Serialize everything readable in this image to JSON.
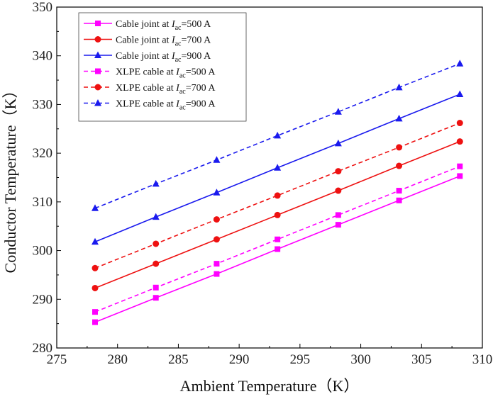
{
  "chart_data": {
    "type": "line",
    "title": "",
    "xlabel": "Ambient Temperature（K）",
    "ylabel": "Conductor Temperature（K）",
    "xlim": [
      275,
      310
    ],
    "ylim": [
      280,
      350
    ],
    "xticks": [
      275,
      280,
      285,
      290,
      295,
      300,
      305,
      310
    ],
    "yticks": [
      280,
      290,
      300,
      310,
      320,
      330,
      340,
      350
    ],
    "x": [
      278.15,
      283.15,
      288.15,
      293.15,
      298.15,
      303.15,
      308.15
    ],
    "legend_position": "top-left",
    "series": [
      {
        "name": "Cable joint at I_ac=500 A",
        "legend_prefix": "Cable joint at ",
        "current": "500 A",
        "color": "#ff00ff",
        "marker": "square",
        "dash": "solid",
        "values": [
          285.3,
          290.3,
          295.2,
          300.3,
          305.3,
          310.3,
          315.3
        ]
      },
      {
        "name": "Cable joint at I_ac=700 A",
        "legend_prefix": "Cable joint at ",
        "current": "700 A",
        "color": "#ee1111",
        "marker": "circle",
        "dash": "solid",
        "values": [
          292.3,
          297.3,
          302.3,
          307.3,
          312.3,
          317.4,
          322.4
        ]
      },
      {
        "name": "Cable joint at I_ac=900 A",
        "legend_prefix": "Cable joint at ",
        "current": "900 A",
        "color": "#1a1aee",
        "marker": "triangle",
        "dash": "solid",
        "values": [
          301.8,
          306.9,
          311.9,
          317.0,
          322.0,
          327.1,
          332.1
        ]
      },
      {
        "name": "XLPE cable at I_ac=500 A",
        "legend_prefix": "XLPE cable at ",
        "current": "500 A",
        "color": "#ff00ff",
        "marker": "square",
        "dash": "dashed",
        "values": [
          287.4,
          292.4,
          297.3,
          302.3,
          307.3,
          312.3,
          317.3
        ]
      },
      {
        "name": "XLPE cable at I_ac=700 A",
        "legend_prefix": "XLPE cable at ",
        "current": "700 A",
        "color": "#ee1111",
        "marker": "circle",
        "dash": "dashed",
        "values": [
          296.4,
          301.4,
          306.4,
          311.3,
          316.3,
          321.2,
          326.2
        ]
      },
      {
        "name": "XLPE cable at I_ac=900 A",
        "legend_prefix": "XLPE cable at ",
        "current": "900 A",
        "color": "#1a1aee",
        "marker": "triangle",
        "dash": "dashed",
        "values": [
          308.7,
          313.7,
          318.6,
          323.6,
          328.5,
          333.5,
          338.4
        ]
      }
    ],
    "legend_symbol": "I",
    "legend_subscript": "ac"
  }
}
